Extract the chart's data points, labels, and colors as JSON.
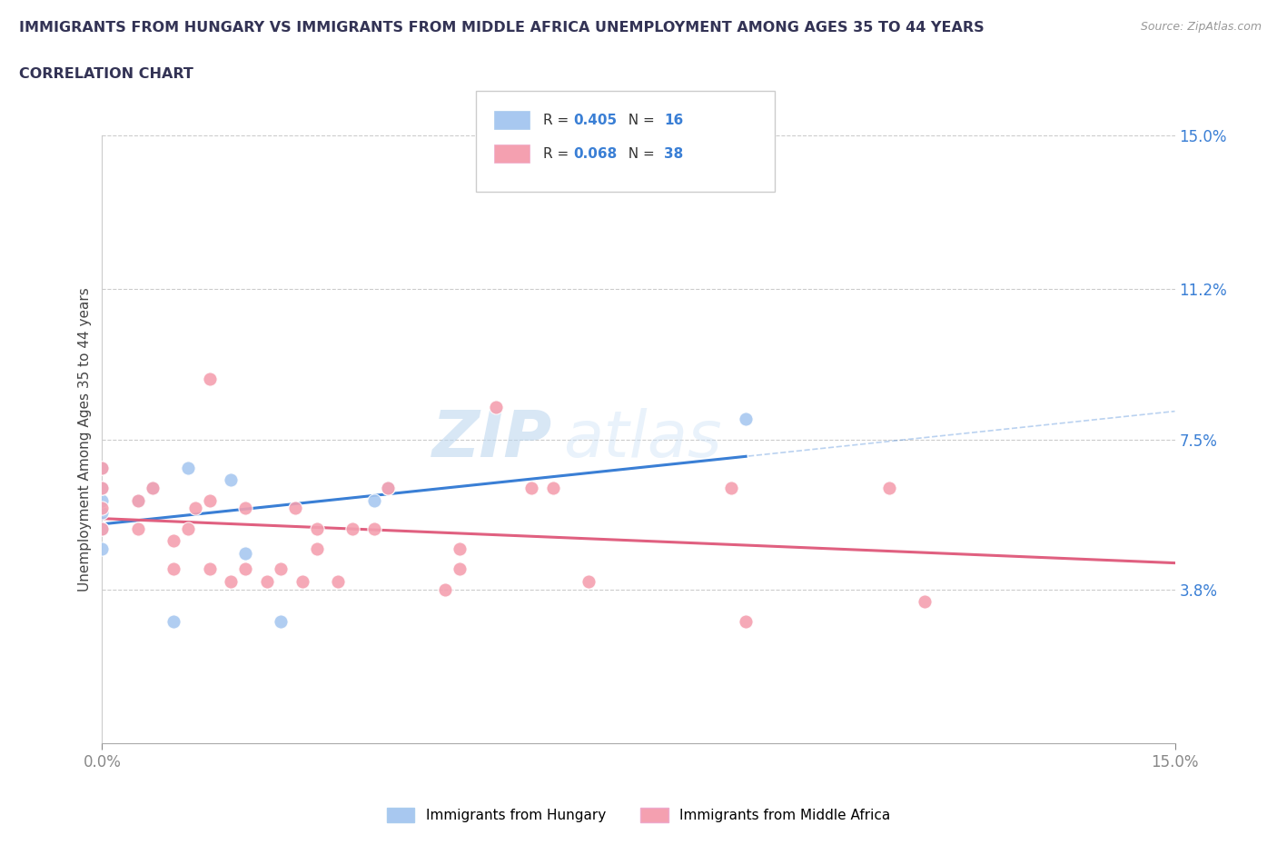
{
  "title_line1": "IMMIGRANTS FROM HUNGARY VS IMMIGRANTS FROM MIDDLE AFRICA UNEMPLOYMENT AMONG AGES 35 TO 44 YEARS",
  "title_line2": "CORRELATION CHART",
  "source_text": "Source: ZipAtlas.com",
  "ylabel": "Unemployment Among Ages 35 to 44 years",
  "xlim": [
    0.0,
    0.15
  ],
  "ylim": [
    0.0,
    0.15
  ],
  "ytick_vals": [
    0.038,
    0.075,
    0.112,
    0.15
  ],
  "ytick_labels": [
    "3.8%",
    "7.5%",
    "11.2%",
    "15.0%"
  ],
  "xtick_vals": [
    0.0,
    0.15
  ],
  "xtick_labels": [
    "0.0%",
    "15.0%"
  ],
  "hungary_scatter_color": "#a8c8f0",
  "middle_africa_scatter_color": "#f4a0b0",
  "hungary_line_color": "#3a7fd5",
  "middle_africa_line_color": "#e06080",
  "blue_label_color": "#3a7fd5",
  "r_hungary": 0.405,
  "n_hungary": 16,
  "r_middle_africa": 0.068,
  "n_middle_africa": 38,
  "legend_label_hungary": "Immigrants from Hungary",
  "legend_label_middle_africa": "Immigrants from Middle Africa",
  "watermark_zip": "ZIP",
  "watermark_atlas": "atlas",
  "grid_color": "#cccccc",
  "title_color": "#333355",
  "hungary_x": [
    0.0,
    0.0,
    0.0,
    0.0,
    0.0,
    0.0,
    0.005,
    0.007,
    0.01,
    0.012,
    0.018,
    0.02,
    0.025,
    0.038,
    0.04,
    0.09
  ],
  "hungary_y": [
    0.048,
    0.053,
    0.057,
    0.06,
    0.063,
    0.068,
    0.06,
    0.063,
    0.03,
    0.068,
    0.065,
    0.047,
    0.03,
    0.06,
    0.063,
    0.08
  ],
  "middle_africa_x": [
    0.0,
    0.0,
    0.0,
    0.0,
    0.005,
    0.005,
    0.007,
    0.01,
    0.01,
    0.012,
    0.013,
    0.015,
    0.015,
    0.015,
    0.018,
    0.02,
    0.02,
    0.023,
    0.025,
    0.027,
    0.028,
    0.03,
    0.03,
    0.033,
    0.035,
    0.038,
    0.04,
    0.048,
    0.05,
    0.05,
    0.055,
    0.06,
    0.063,
    0.068,
    0.088,
    0.09,
    0.11,
    0.115
  ],
  "middle_africa_y": [
    0.053,
    0.058,
    0.063,
    0.068,
    0.053,
    0.06,
    0.063,
    0.043,
    0.05,
    0.053,
    0.058,
    0.043,
    0.06,
    0.09,
    0.04,
    0.043,
    0.058,
    0.04,
    0.043,
    0.058,
    0.04,
    0.048,
    0.053,
    0.04,
    0.053,
    0.053,
    0.063,
    0.038,
    0.043,
    0.048,
    0.083,
    0.063,
    0.063,
    0.04,
    0.063,
    0.03,
    0.063,
    0.035
  ]
}
